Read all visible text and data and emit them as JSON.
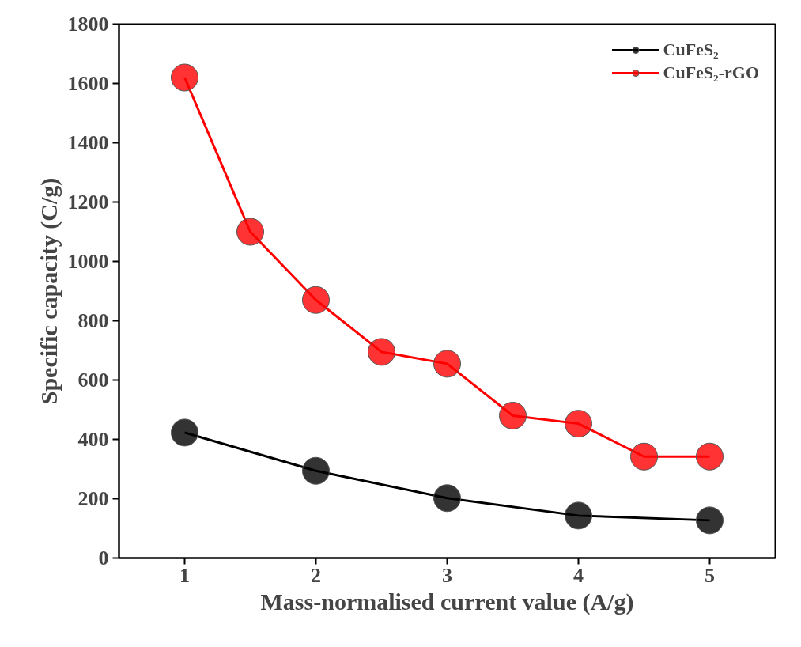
{
  "chart_data": {
    "type": "line",
    "xlabel": "Mass-normalised current value (A/g)",
    "ylabel": "Specific capacity (C/g)",
    "xlim": [
      0.5,
      5.5
    ],
    "xticks": [
      1,
      2,
      3,
      4,
      5
    ],
    "ylim": [
      0,
      1800
    ],
    "yticks": [
      0,
      200,
      400,
      600,
      800,
      1000,
      1200,
      1400,
      1600,
      1800
    ],
    "grid": false,
    "legend": "top right",
    "marker": "circle",
    "line_style": "solid",
    "series": [
      {
        "name": "CuFeS₂",
        "color": "#000000",
        "x": [
          1,
          2,
          3,
          4,
          5
        ],
        "values": [
          423,
          294,
          202,
          143,
          127
        ]
      },
      {
        "name": "CuFeS₂-rGO",
        "color": "#ff0000",
        "x": [
          1,
          1.5,
          2,
          2.5,
          3,
          3.5,
          4,
          4.5,
          5
        ],
        "values": [
          1620,
          1100,
          870,
          695,
          655,
          480,
          453,
          342,
          342
        ]
      }
    ]
  }
}
